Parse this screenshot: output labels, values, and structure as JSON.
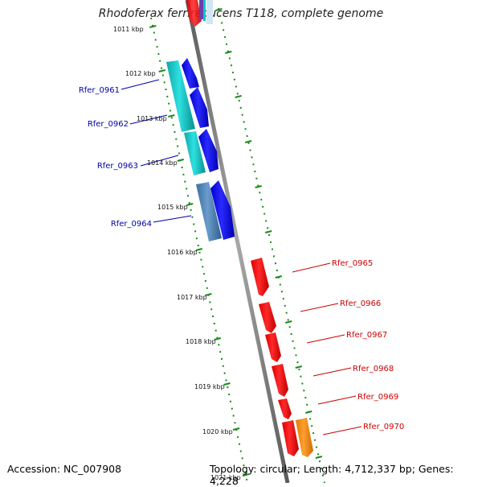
{
  "title": "Rhodoferax ferrireducens T118, complete genome",
  "accession": "Accession: NC_007908",
  "topology": "Topology: circular; Length: 4,712,337 bp; Genes: 4,228",
  "colors": {
    "backbone": "#808080",
    "tick": "#1a8a1a",
    "left_label": "#0000aa",
    "right_label": "#cc0000",
    "blue_gene": "#0000ee",
    "cyan_gene": "#11c4c4",
    "steel_gene": "#4a7fb0",
    "red_gene": "#ee0000",
    "orange_gene": "#ff8c00"
  },
  "scale_labels": [
    "1011 kbp",
    "1012 kbp",
    "1013 kbp",
    "1014 kbp",
    "1015 kbp",
    "1016 kbp",
    "1017 kbp",
    "1018 kbp",
    "1019 kbp",
    "1020 kbp",
    "1021 kbp"
  ],
  "left_gene_labels": [
    "Rfer_0961",
    "Rfer_0962",
    "Rfer_0963",
    "Rfer_0964"
  ],
  "right_gene_labels": [
    "Rfer_0965",
    "Rfer_0966",
    "Rfer_0967",
    "Rfer_0968",
    "Rfer_0969",
    "Rfer_0970"
  ]
}
